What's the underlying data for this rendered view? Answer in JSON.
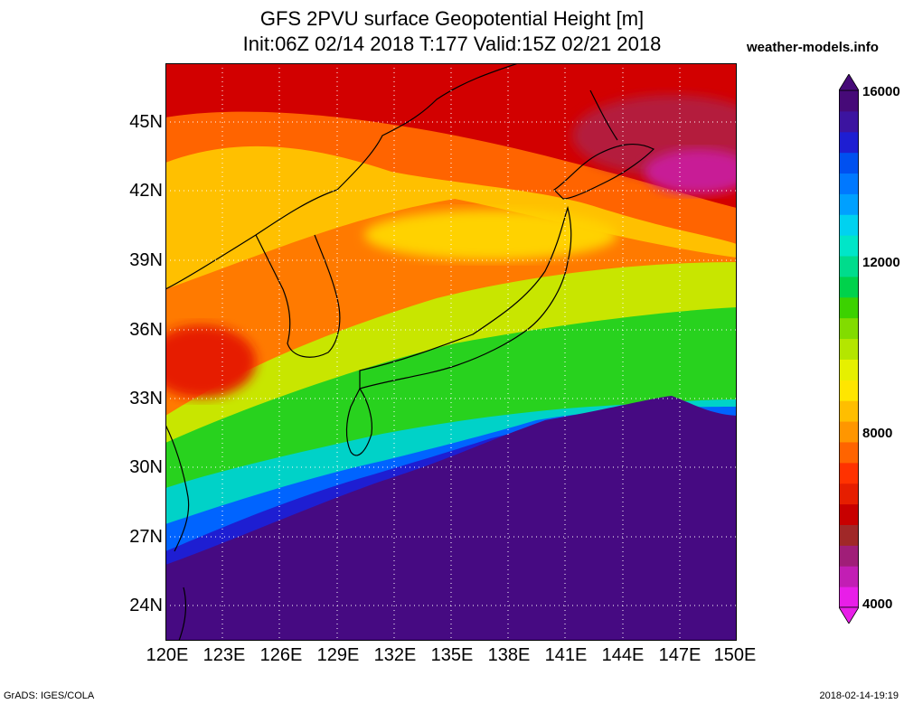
{
  "title_line1": "GFS 2PVU surface Geopotential Height [m]",
  "title_line2": "Init:06Z 02/14 2018 T:177 Valid:15Z 02/21 2018",
  "credit": "weather-models.info",
  "lat_labels": [
    "45N",
    "42N",
    "39N",
    "36N",
    "33N",
    "30N",
    "27N",
    "24N"
  ],
  "lon_labels": [
    "120E",
    "123E",
    "126E",
    "129E",
    "132E",
    "135E",
    "138E",
    "141E",
    "144E",
    "147E",
    "150E"
  ],
  "colorbar": {
    "labels": [
      "16000",
      "12000",
      "8000",
      "4000"
    ],
    "min": 4000,
    "max": 16000,
    "colors": [
      "#e81ee8",
      "#c21eb4",
      "#a01e78",
      "#a02828",
      "#c80000",
      "#e61e00",
      "#ff3200",
      "#ff6400",
      "#ff9600",
      "#ffbe00",
      "#ffe600",
      "#e6f000",
      "#b4e600",
      "#82dc00",
      "#3cd200",
      "#00d24b",
      "#00dc8c",
      "#00e6c8",
      "#00d2f0",
      "#00a0ff",
      "#0078ff",
      "#0050f0",
      "#1e1ed2",
      "#3c14a0",
      "#460a78"
    ]
  },
  "footer_left": "GrADS: IGES/COLA",
  "footer_right": "2018-02-14-19:19"
}
